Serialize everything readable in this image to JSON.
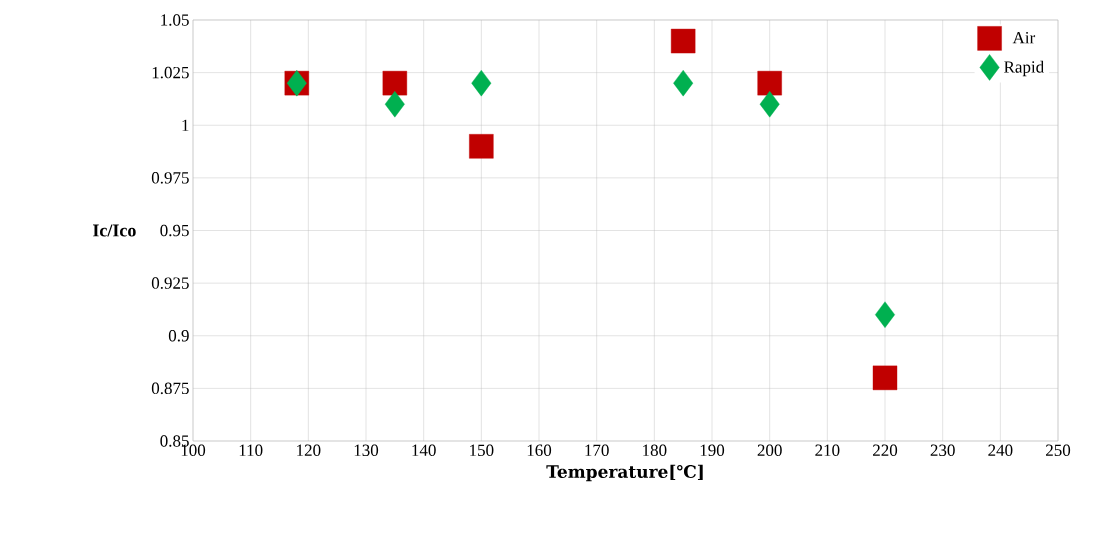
{
  "chart_data": {
    "type": "scatter",
    "xlabel": "Temperature[℃]",
    "ylabel": "Ic/Ico",
    "xlim": [
      100,
      250
    ],
    "xticks": [
      100,
      110,
      120,
      130,
      140,
      150,
      160,
      170,
      180,
      190,
      200,
      210,
      220,
      230,
      240,
      250
    ],
    "ylim": [
      0.85,
      1.05
    ],
    "yticks": [
      0.85,
      0.875,
      0.9,
      0.925,
      0.95,
      0.975,
      1,
      1.025,
      1.05
    ],
    "grid": true,
    "legend": "top right",
    "series": [
      {
        "name": "Air",
        "color": "#c00000",
        "marker": "square",
        "x": [
          118,
          135,
          150,
          185,
          200,
          220
        ],
        "values": [
          1.02,
          1.02,
          0.99,
          1.04,
          1.02,
          0.88
        ]
      },
      {
        "name": "Rapid",
        "color": "#00b050",
        "marker": "diamond",
        "x": [
          118,
          135,
          150,
          185,
          200,
          220
        ],
        "values": [
          1.02,
          1.01,
          1.02,
          1.02,
          1.01,
          0.91
        ]
      }
    ]
  }
}
